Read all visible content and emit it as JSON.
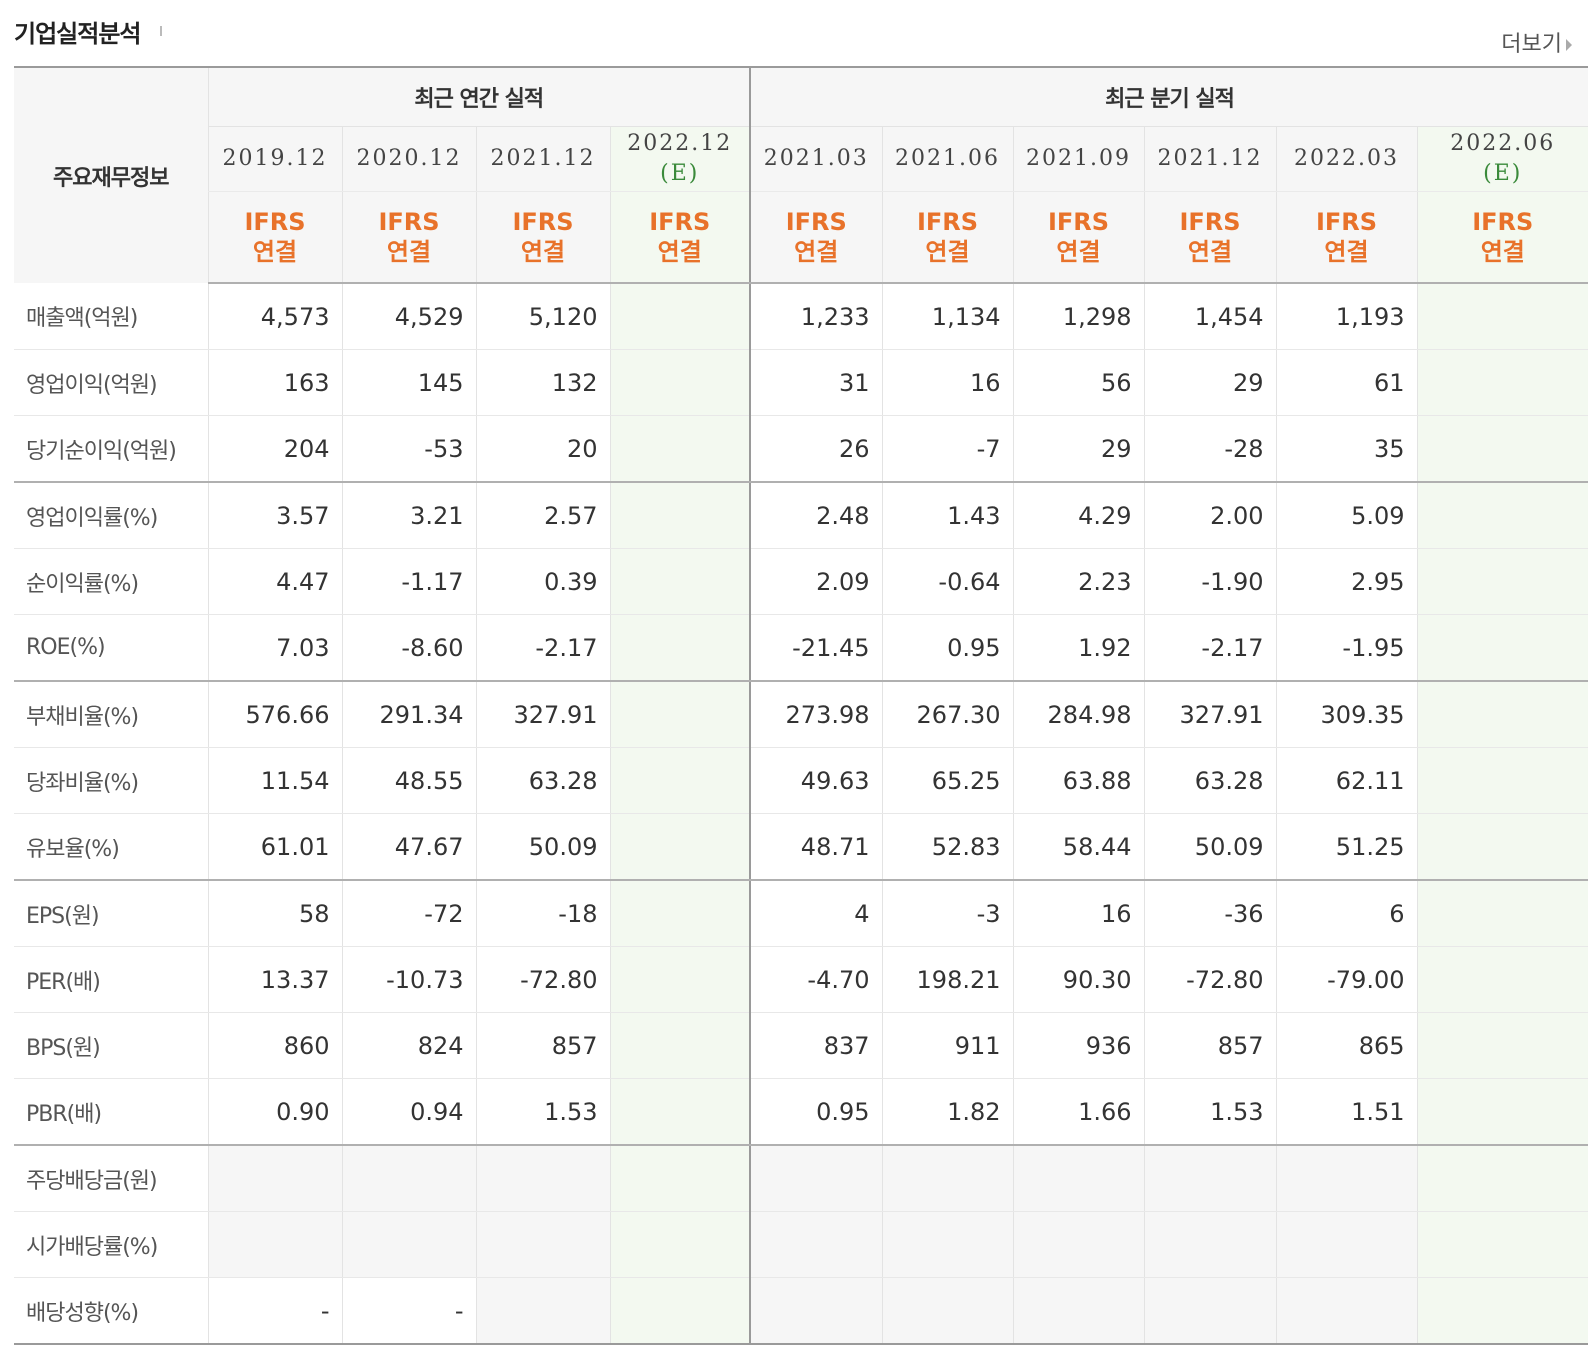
{
  "header": {
    "title": "기업실적분석",
    "more_label": "더보기"
  },
  "table": {
    "corner_label": "주요재무정보",
    "groups": {
      "annual": "최근 연간 실적",
      "quarterly": "최근 분기 실적"
    },
    "columns": [
      {
        "period": "2019.12",
        "est": "",
        "basis1": "IFRS",
        "basis2": "연결"
      },
      {
        "period": "2020.12",
        "est": "",
        "basis1": "IFRS",
        "basis2": "연결"
      },
      {
        "period": "2021.12",
        "est": "",
        "basis1": "IFRS",
        "basis2": "연결"
      },
      {
        "period": "2022.12",
        "est": "(E)",
        "basis1": "IFRS",
        "basis2": "연결"
      },
      {
        "period": "2021.03",
        "est": "",
        "basis1": "IFRS",
        "basis2": "연결"
      },
      {
        "period": "2021.06",
        "est": "",
        "basis1": "IFRS",
        "basis2": "연결"
      },
      {
        "period": "2021.09",
        "est": "",
        "basis1": "IFRS",
        "basis2": "연결"
      },
      {
        "period": "2021.12",
        "est": "",
        "basis1": "IFRS",
        "basis2": "연결"
      },
      {
        "period": "2022.03",
        "est": "",
        "basis1": "IFRS",
        "basis2": "연결"
      },
      {
        "period": "2022.06",
        "est": "(E)",
        "basis1": "IFRS",
        "basis2": "연결"
      }
    ],
    "rows": [
      {
        "label": "매출액(억원)",
        "values": [
          "4,573",
          "4,529",
          "5,120",
          "",
          "1,233",
          "1,134",
          "1,298",
          "1,454",
          "1,193",
          ""
        ]
      },
      {
        "label": "영업이익(억원)",
        "values": [
          "163",
          "145",
          "132",
          "",
          "31",
          "16",
          "56",
          "29",
          "61",
          ""
        ]
      },
      {
        "label": "당기순이익(억원)",
        "values": [
          "204",
          "-53",
          "20",
          "",
          "26",
          "-7",
          "29",
          "-28",
          "35",
          ""
        ]
      },
      {
        "label": "영업이익률(%)",
        "values": [
          "3.57",
          "3.21",
          "2.57",
          "",
          "2.48",
          "1.43",
          "4.29",
          "2.00",
          "5.09",
          ""
        ]
      },
      {
        "label": "순이익률(%)",
        "values": [
          "4.47",
          "-1.17",
          "0.39",
          "",
          "2.09",
          "-0.64",
          "2.23",
          "-1.90",
          "2.95",
          ""
        ]
      },
      {
        "label": "ROE(%)",
        "values": [
          "7.03",
          "-8.60",
          "-2.17",
          "",
          "-21.45",
          "0.95",
          "1.92",
          "-2.17",
          "-1.95",
          ""
        ]
      },
      {
        "label": "부채비율(%)",
        "values": [
          "576.66",
          "291.34",
          "327.91",
          "",
          "273.98",
          "267.30",
          "284.98",
          "327.91",
          "309.35",
          ""
        ]
      },
      {
        "label": "당좌비율(%)",
        "values": [
          "11.54",
          "48.55",
          "63.28",
          "",
          "49.63",
          "65.25",
          "63.88",
          "63.28",
          "62.11",
          ""
        ]
      },
      {
        "label": "유보율(%)",
        "values": [
          "61.01",
          "47.67",
          "50.09",
          "",
          "48.71",
          "52.83",
          "58.44",
          "50.09",
          "51.25",
          ""
        ]
      },
      {
        "label": "EPS(원)",
        "values": [
          "58",
          "-72",
          "-18",
          "",
          "4",
          "-3",
          "16",
          "-36",
          "6",
          ""
        ]
      },
      {
        "label": "PER(배)",
        "values": [
          "13.37",
          "-10.73",
          "-72.80",
          "",
          "-4.70",
          "198.21",
          "90.30",
          "-72.80",
          "-79.00",
          ""
        ]
      },
      {
        "label": "BPS(원)",
        "values": [
          "860",
          "824",
          "857",
          "",
          "837",
          "911",
          "936",
          "857",
          "865",
          ""
        ]
      },
      {
        "label": "PBR(배)",
        "values": [
          "0.90",
          "0.94",
          "1.53",
          "",
          "0.95",
          "1.82",
          "1.66",
          "1.53",
          "1.51",
          ""
        ]
      },
      {
        "label": "주당배당금(원)",
        "values": [
          "",
          "",
          "",
          "",
          "",
          "",
          "",
          "",
          "",
          ""
        ]
      },
      {
        "label": "시가배당률(%)",
        "values": [
          "",
          "",
          "",
          "",
          "",
          "",
          "",
          "",
          "",
          ""
        ]
      },
      {
        "label": "배당성향(%)",
        "values": [
          "-",
          "-",
          "",
          "",
          "",
          "",
          "",
          "",
          "",
          ""
        ]
      }
    ]
  }
}
